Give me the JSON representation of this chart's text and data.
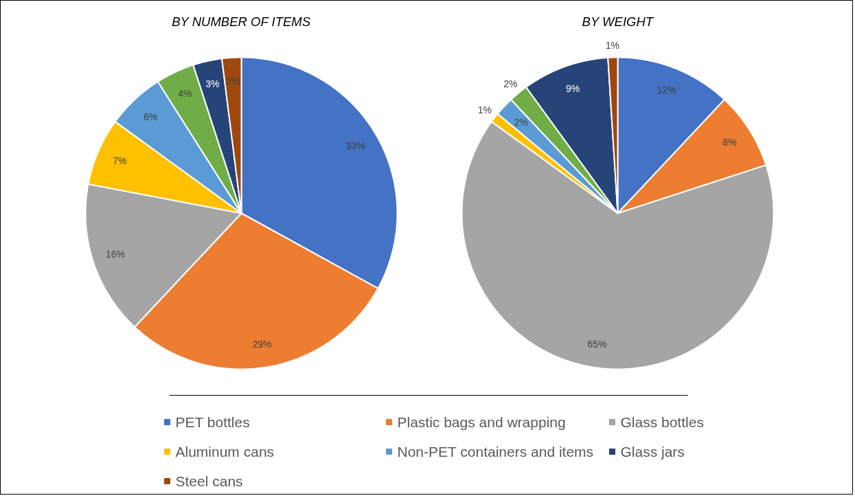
{
  "chart_data": [
    {
      "type": "pie",
      "title": "BY NUMBER OF ITEMS",
      "categories": [
        "PET bottles",
        "Plastic bags and wrapping",
        "Glass bottles",
        "Aluminum cans",
        "Non-PET containers and items",
        null,
        "Glass jars",
        "Steel cans"
      ],
      "values": [
        33,
        29,
        16,
        7,
        6,
        4,
        3,
        2
      ],
      "value_labels": [
        "33%",
        "29%",
        "16%",
        "7%",
        "6%",
        "4%",
        "3%",
        "2%"
      ],
      "colors": [
        "#4472c4",
        "#ed7d31",
        "#a5a5a5",
        "#ffc000",
        "#5b9bd5",
        "#70ad47",
        "#264478",
        "#9e480e"
      ],
      "legend": "bottom"
    },
    {
      "type": "pie",
      "title": "BY WEIGHT",
      "values": [
        12,
        8,
        65,
        1,
        2,
        2,
        9,
        1
      ],
      "value_labels": [
        "12%",
        "8%",
        "65%",
        "1%",
        "2%",
        "2%",
        "9%",
        "1%"
      ],
      "colors": [
        "#4472c4",
        "#ed7d31",
        "#a5a5a5",
        "#ffc000",
        "#5b9bd5",
        "#70ad47",
        "#264478",
        "#9e480e"
      ]
    }
  ]
}
